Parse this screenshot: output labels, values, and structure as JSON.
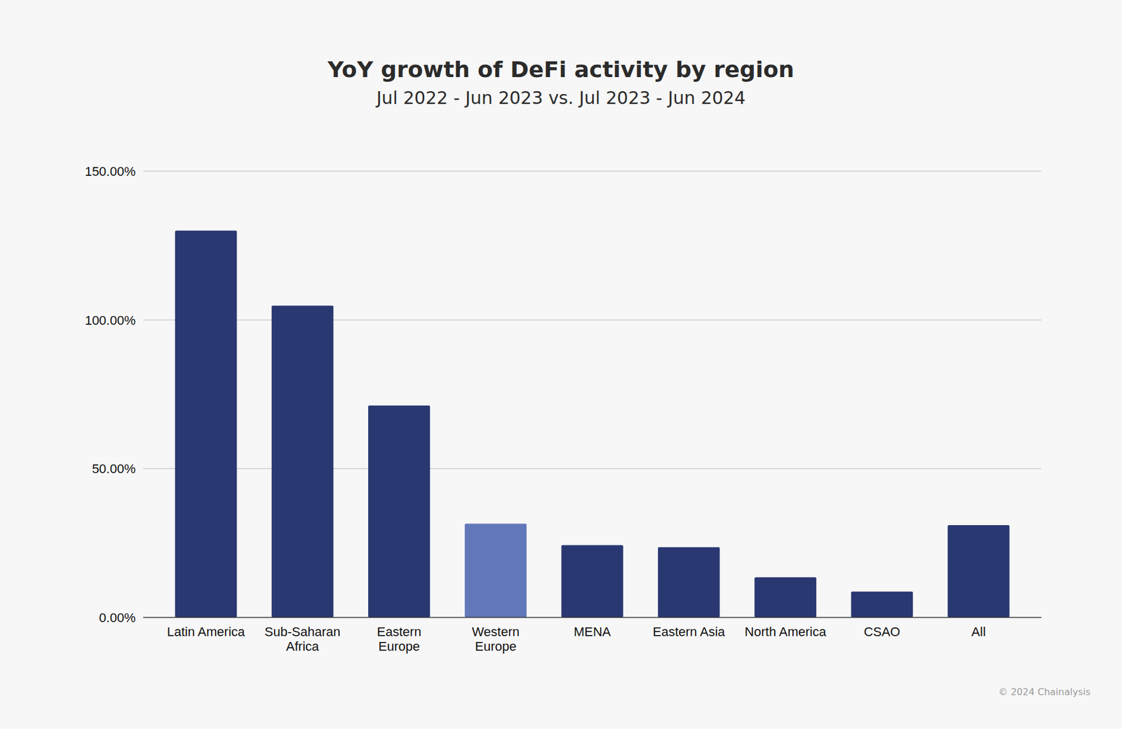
{
  "chart_data": {
    "type": "bar",
    "title": "YoY growth of DeFi activity by region",
    "subtitle": "Jul 2022 - Jun 2023 vs. Jul 2023 - Jun 2024",
    "source": "© 2024 Chainalysis",
    "categories": [
      "Latin America",
      "Sub-Saharan\nAfrica",
      "Eastern\nEurope",
      "Western\nEurope",
      "MENA",
      "Eastern Asia",
      "North America",
      "CSAO",
      "All"
    ],
    "values": [
      130.0,
      104.8,
      71.2,
      31.5,
      24.3,
      23.6,
      13.5,
      8.7,
      31.0
    ],
    "colors": [
      "#2a3872",
      "#2a3872",
      "#2a3872",
      "#6278ba",
      "#2a3872",
      "#2a3872",
      "#2a3872",
      "#2a3872",
      "#2a3872"
    ],
    "ylim": [
      0,
      150
    ],
    "yticks": [
      {
        "value": 0,
        "label": "0.00%"
      },
      {
        "value": 50,
        "label": "50.00%"
      },
      {
        "value": 100,
        "label": "100.00%"
      },
      {
        "value": 150,
        "label": "150.00%"
      }
    ],
    "grid": true
  }
}
